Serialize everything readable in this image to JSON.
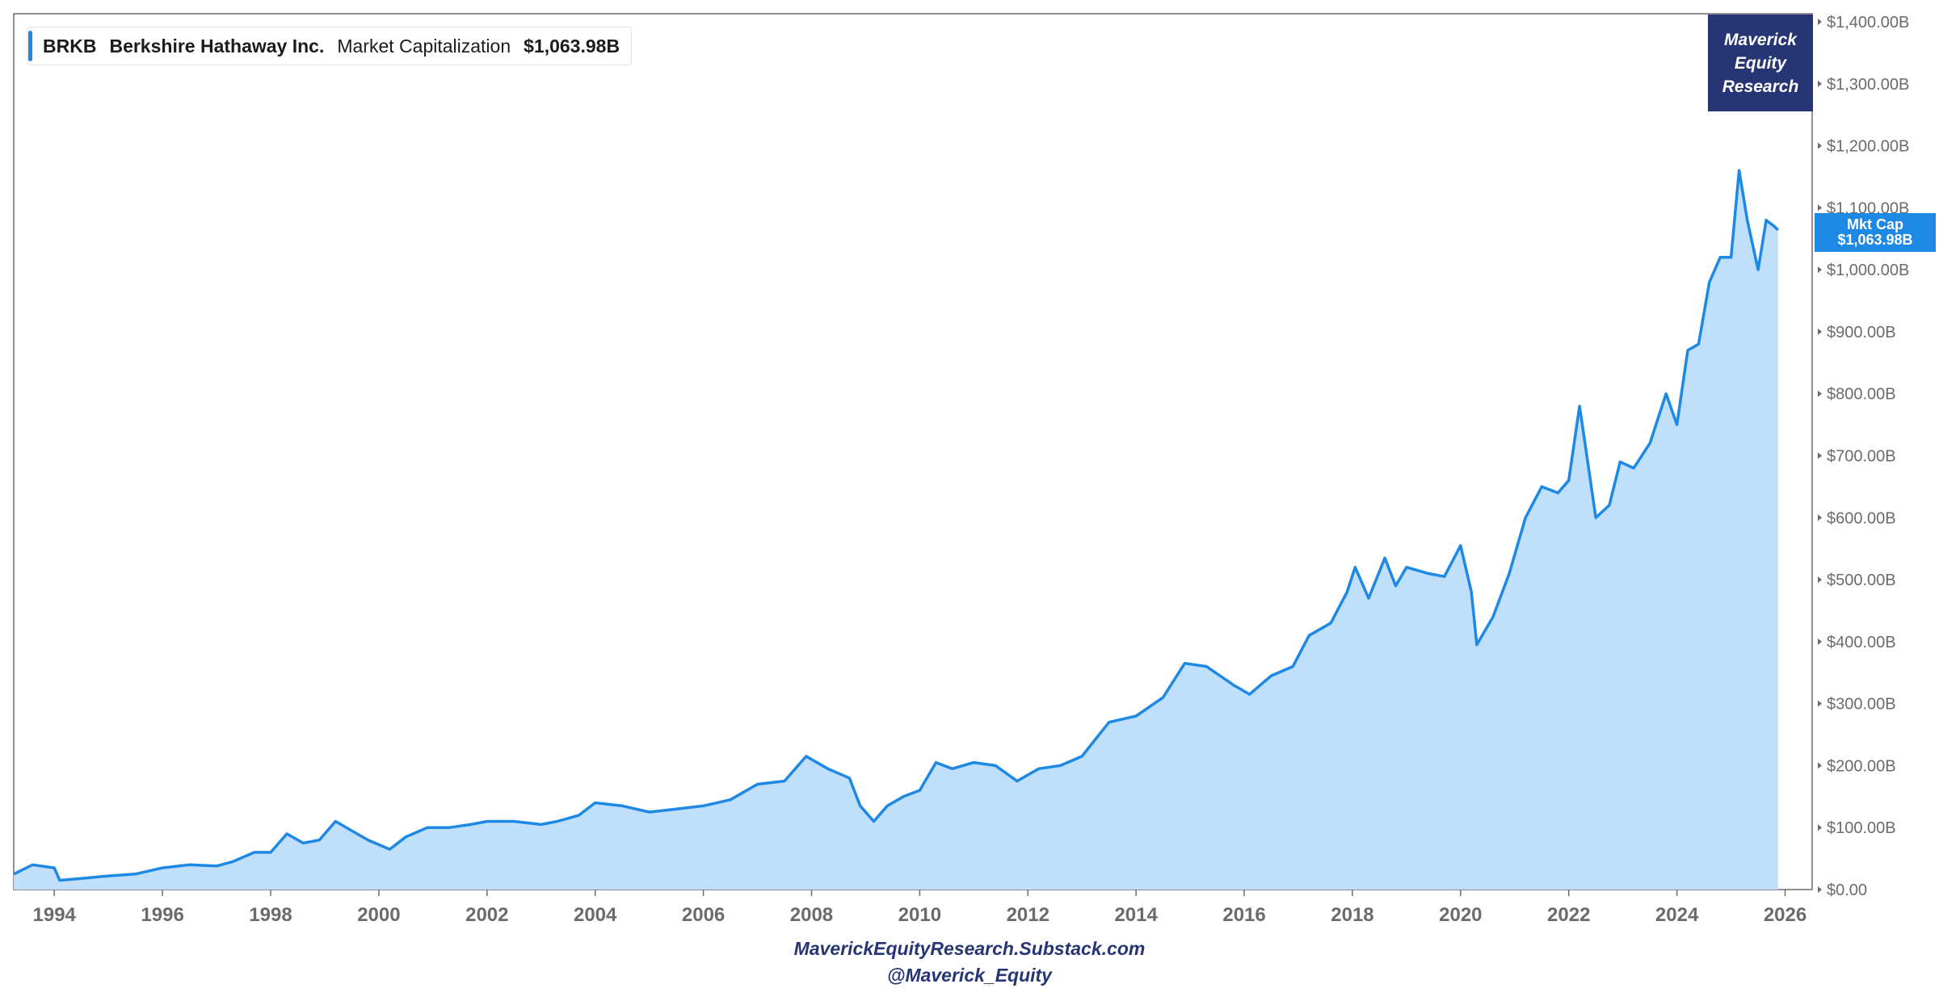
{
  "legend": {
    "ticker": "BRKB",
    "company": "Berkshire Hathaway Inc.",
    "metric": "Market Capitalization",
    "value": "$1,063.98B"
  },
  "brand_box": {
    "line1": "Maverick",
    "line2": "Equity",
    "line3": "Research"
  },
  "last_value_tag": {
    "label": "Mkt Cap",
    "value": "$1,063.98B"
  },
  "footer": {
    "line1": "MaverickEquityResearch.Substack.com",
    "line2": "@Maverick_Equity"
  },
  "colors": {
    "line": "#1e88e5",
    "area_fill": "#bfdffb",
    "brand_bg": "#263573",
    "footer_text": "#263573",
    "axis_text": "#6b6b6b"
  },
  "chart_data": {
    "type": "area",
    "title": "",
    "xlabel": "",
    "ylabel": "",
    "series": [
      {
        "name": "Market Capitalization",
        "x": [
          1993.25,
          1993.6,
          1994.0,
          1994.1,
          1994.5,
          1995.0,
          1995.5,
          1996.0,
          1996.5,
          1997.0,
          1997.3,
          1997.7,
          1998.0,
          1998.3,
          1998.6,
          1998.9,
          1999.2,
          1999.5,
          1999.8,
          2000.2,
          2000.5,
          2000.9,
          2001.3,
          2001.7,
          2002.0,
          2002.5,
          2003.0,
          2003.3,
          2003.7,
          2004.0,
          2004.5,
          2005.0,
          2005.5,
          2006.0,
          2006.5,
          2007.0,
          2007.5,
          2007.9,
          2008.3,
          2008.7,
          2008.9,
          2009.15,
          2009.4,
          2009.7,
          2010.0,
          2010.3,
          2010.6,
          2011.0,
          2011.4,
          2011.8,
          2012.2,
          2012.6,
          2013.0,
          2013.5,
          2014.0,
          2014.5,
          2014.9,
          2015.3,
          2015.8,
          2016.1,
          2016.5,
          2016.9,
          2017.2,
          2017.6,
          2017.9,
          2018.05,
          2018.3,
          2018.6,
          2018.8,
          2019.0,
          2019.4,
          2019.7,
          2020.0,
          2020.2,
          2020.3,
          2020.6,
          2020.9,
          2021.2,
          2021.5,
          2021.8,
          2022.0,
          2022.2,
          2022.35,
          2022.5,
          2022.75,
          2022.95,
          2023.2,
          2023.5,
          2023.8,
          2024.0,
          2024.2,
          2024.4,
          2024.6,
          2024.8,
          2025.0,
          2025.15,
          2025.3,
          2025.5,
          2025.65,
          2025.8,
          2025.87
        ],
        "values": [
          25,
          40,
          35,
          15,
          18,
          22,
          25,
          35,
          40,
          38,
          45,
          60,
          60,
          90,
          75,
          80,
          110,
          95,
          80,
          65,
          85,
          100,
          100,
          105,
          110,
          110,
          105,
          110,
          120,
          140,
          135,
          125,
          130,
          135,
          145,
          170,
          175,
          215,
          195,
          180,
          135,
          110,
          135,
          150,
          160,
          205,
          195,
          205,
          200,
          175,
          195,
          200,
          215,
          270,
          280,
          310,
          365,
          360,
          330,
          315,
          345,
          360,
          410,
          430,
          480,
          520,
          470,
          535,
          490,
          520,
          510,
          505,
          555,
          480,
          395,
          440,
          510,
          600,
          650,
          640,
          660,
          780,
          690,
          600,
          620,
          690,
          680,
          720,
          800,
          750,
          870,
          880,
          980,
          1020,
          1020,
          1160,
          1080,
          1000,
          1080,
          1070,
          1064
        ]
      }
    ],
    "xlim": [
      1993.25,
      2026.5
    ],
    "ylim": [
      0,
      1400
    ],
    "x_ticks": [
      "1994",
      "1996",
      "1998",
      "2000",
      "2002",
      "2004",
      "2006",
      "2008",
      "2010",
      "2012",
      "2014",
      "2016",
      "2018",
      "2020",
      "2022",
      "2024",
      "2026"
    ],
    "y_ticks": [
      "$0.00",
      "$100.00B",
      "$200.00B",
      "$300.00B",
      "$400.00B",
      "$500.00B",
      "$600.00B",
      "$700.00B",
      "$800.00B",
      "$900.00B",
      "$1,000.00B",
      "$1,100.00B",
      "$1,200.00B",
      "$1,300.00B",
      "$1,400.00B"
    ],
    "grid": false,
    "legend_position": "top-left"
  }
}
